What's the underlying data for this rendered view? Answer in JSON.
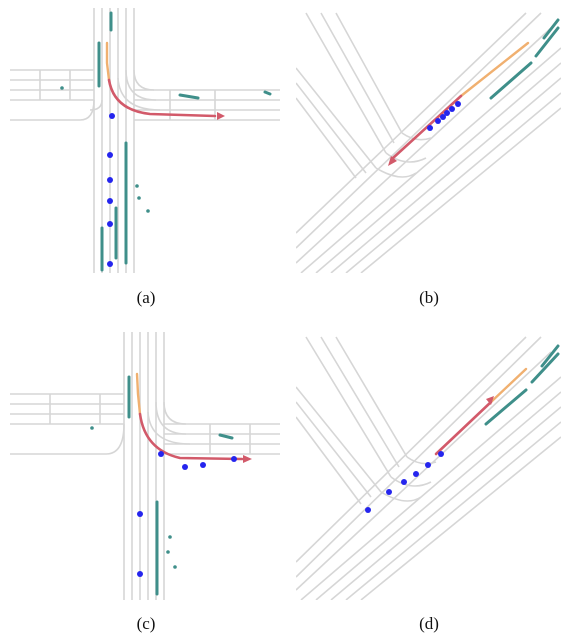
{
  "figure": {
    "captions": {
      "a": "(a)",
      "b": "(b)",
      "c": "(c)",
      "d": "(d)"
    }
  },
  "colors": {
    "lane": "#d6d6d6",
    "agents": "#3f8f8a",
    "history": "#f0b070",
    "prediction": "#d25a6a",
    "waypoints": "#2525ee"
  }
}
